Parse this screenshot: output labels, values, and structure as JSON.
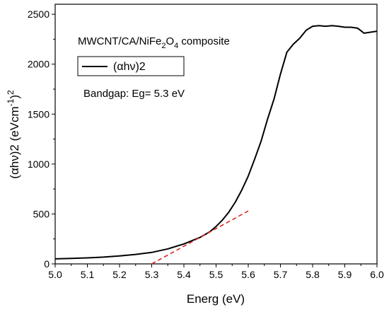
{
  "chart_data": {
    "type": "line",
    "title": "",
    "xlabel": "Energ (eV)",
    "ylabel_parts": {
      "main": "(αhν)2 (eVcm",
      "sup1": "-1",
      "close": ")",
      "sup2": "2"
    },
    "xlim": [
      5.0,
      6.0
    ],
    "ylim": [
      0,
      2600
    ],
    "x_ticks": [
      5.0,
      5.1,
      5.2,
      5.3,
      5.4,
      5.5,
      5.6,
      5.7,
      5.8,
      5.9,
      6.0
    ],
    "x_tick_labels": [
      "5.0",
      "5.1",
      "5.2",
      "5.3",
      "5.4",
      "5.5",
      "5.6",
      "5.7",
      "5.8",
      "5.9",
      "6.0"
    ],
    "y_ticks": [
      0,
      500,
      1000,
      1500,
      2000,
      2500
    ],
    "y_tick_labels": [
      "0",
      "500",
      "1000",
      "1500",
      "2000",
      "2500"
    ],
    "grid": false,
    "legend_position": "top-left",
    "series": [
      {
        "name": "(αhν)2",
        "color": "#000000",
        "style": "solid",
        "x": [
          5.0,
          5.05,
          5.1,
          5.15,
          5.2,
          5.25,
          5.3,
          5.35,
          5.4,
          5.45,
          5.48,
          5.5,
          5.52,
          5.54,
          5.56,
          5.58,
          5.6,
          5.62,
          5.64,
          5.66,
          5.68,
          5.7,
          5.72,
          5.74,
          5.76,
          5.78,
          5.8,
          5.82,
          5.84,
          5.86,
          5.88,
          5.9,
          5.92,
          5.94,
          5.96,
          5.98,
          6.0
        ],
        "y": [
          50,
          55,
          60,
          68,
          80,
          95,
          115,
          150,
          200,
          265,
          320,
          375,
          440,
          520,
          620,
          740,
          880,
          1050,
          1230,
          1450,
          1650,
          1900,
          2120,
          2200,
          2260,
          2340,
          2380,
          2385,
          2380,
          2385,
          2380,
          2370,
          2370,
          2360,
          2310,
          2320,
          2330
        ]
      },
      {
        "name": "",
        "color": "#d62a1e",
        "style": "dashed",
        "x": [
          5.3,
          5.6
        ],
        "y": [
          0,
          530
        ]
      }
    ]
  },
  "annotations": {
    "composite_prefix": "MWCNT/CA/NiFe",
    "composite_sub1": "2",
    "composite_mid": "O",
    "composite_sub2": "4",
    "composite_suffix": " composite",
    "bandgap": "Bandgap: Eg= 5.3 eV"
  },
  "legend": {
    "label": "(αhν)2"
  }
}
